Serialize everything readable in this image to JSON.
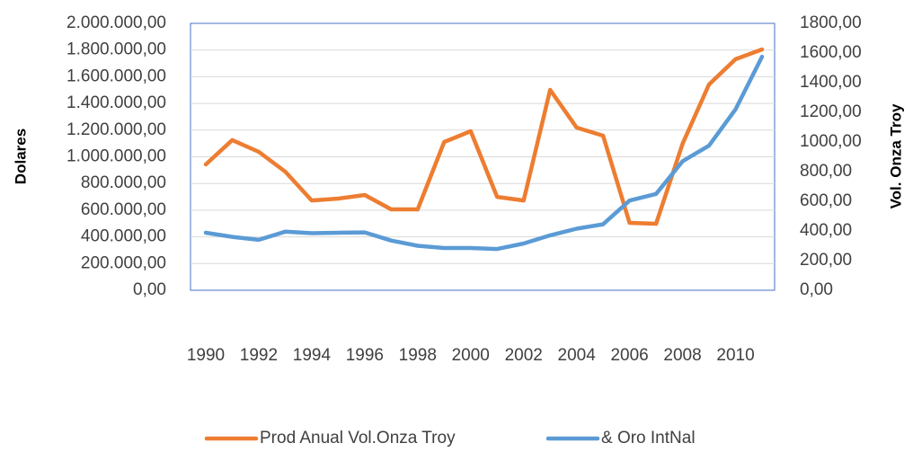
{
  "chart_data": {
    "type": "line",
    "categories": [
      "1990",
      null,
      "1992",
      null,
      "1994",
      null,
      "1996",
      null,
      "1998",
      null,
      "2000",
      null,
      "2002",
      null,
      "2004",
      null,
      "2006",
      null,
      "2008",
      null,
      "2010",
      null
    ],
    "ylabel": "Dolares",
    "y2label": "Vol. Onza Troy",
    "series": [
      {
        "name": "Prod Anual Vol.Onza Troy",
        "color": "#ed7d31",
        "axis": "y",
        "values": [
          943000,
          1125000,
          1037000,
          889000,
          673000,
          687000,
          714000,
          606000,
          606000,
          1111000,
          1192000,
          700000,
          673000,
          1502000,
          1219000,
          1158000,
          505000,
          498000,
          1098000,
          1542000,
          1731000,
          1805000
        ]
      },
      {
        "name": "& Oro IntNal",
        "color": "#5b9bd5",
        "axis": "y2",
        "values": [
          388,
          360,
          340,
          395,
          385,
          388,
          390,
          335,
          300,
          285,
          285,
          278,
          315,
          370,
          415,
          445,
          605,
          650,
          870,
          975,
          1220,
          1575
        ]
      }
    ],
    "ylim": [
      0,
      2000000
    ],
    "yticks": [
      {
        "value": 0,
        "label": "0,00"
      },
      {
        "value": 200000,
        "label": "200.000,00"
      },
      {
        "value": 400000,
        "label": "400.000,00"
      },
      {
        "value": 600000,
        "label": "600.000,00"
      },
      {
        "value": 800000,
        "label": "800.000,00"
      },
      {
        "value": 1000000,
        "label": "1.000.000,00"
      },
      {
        "value": 1200000,
        "label": "1.200.000,00"
      },
      {
        "value": 1400000,
        "label": "1.400.000,00"
      },
      {
        "value": 1600000,
        "label": "1.600.000,00"
      },
      {
        "value": 1800000,
        "label": "1.800.000,00"
      },
      {
        "value": 2000000,
        "label": "2.000.000,00"
      }
    ],
    "y2lim": [
      0,
      1800
    ],
    "y2ticks": [
      {
        "value": 0,
        "label": "0,00"
      },
      {
        "value": 200,
        "label": "200,00"
      },
      {
        "value": 400,
        "label": "400,00"
      },
      {
        "value": 600,
        "label": "600,00"
      },
      {
        "value": 800,
        "label": "800,00"
      },
      {
        "value": 1000,
        "label": "1000,00"
      },
      {
        "value": 1200,
        "label": "1200,00"
      },
      {
        "value": 1400,
        "label": "1400,00"
      },
      {
        "value": 1600,
        "label": "1600,00"
      },
      {
        "value": 1800,
        "label": "1800,00"
      }
    ],
    "grid": true,
    "legend": "bottom"
  }
}
